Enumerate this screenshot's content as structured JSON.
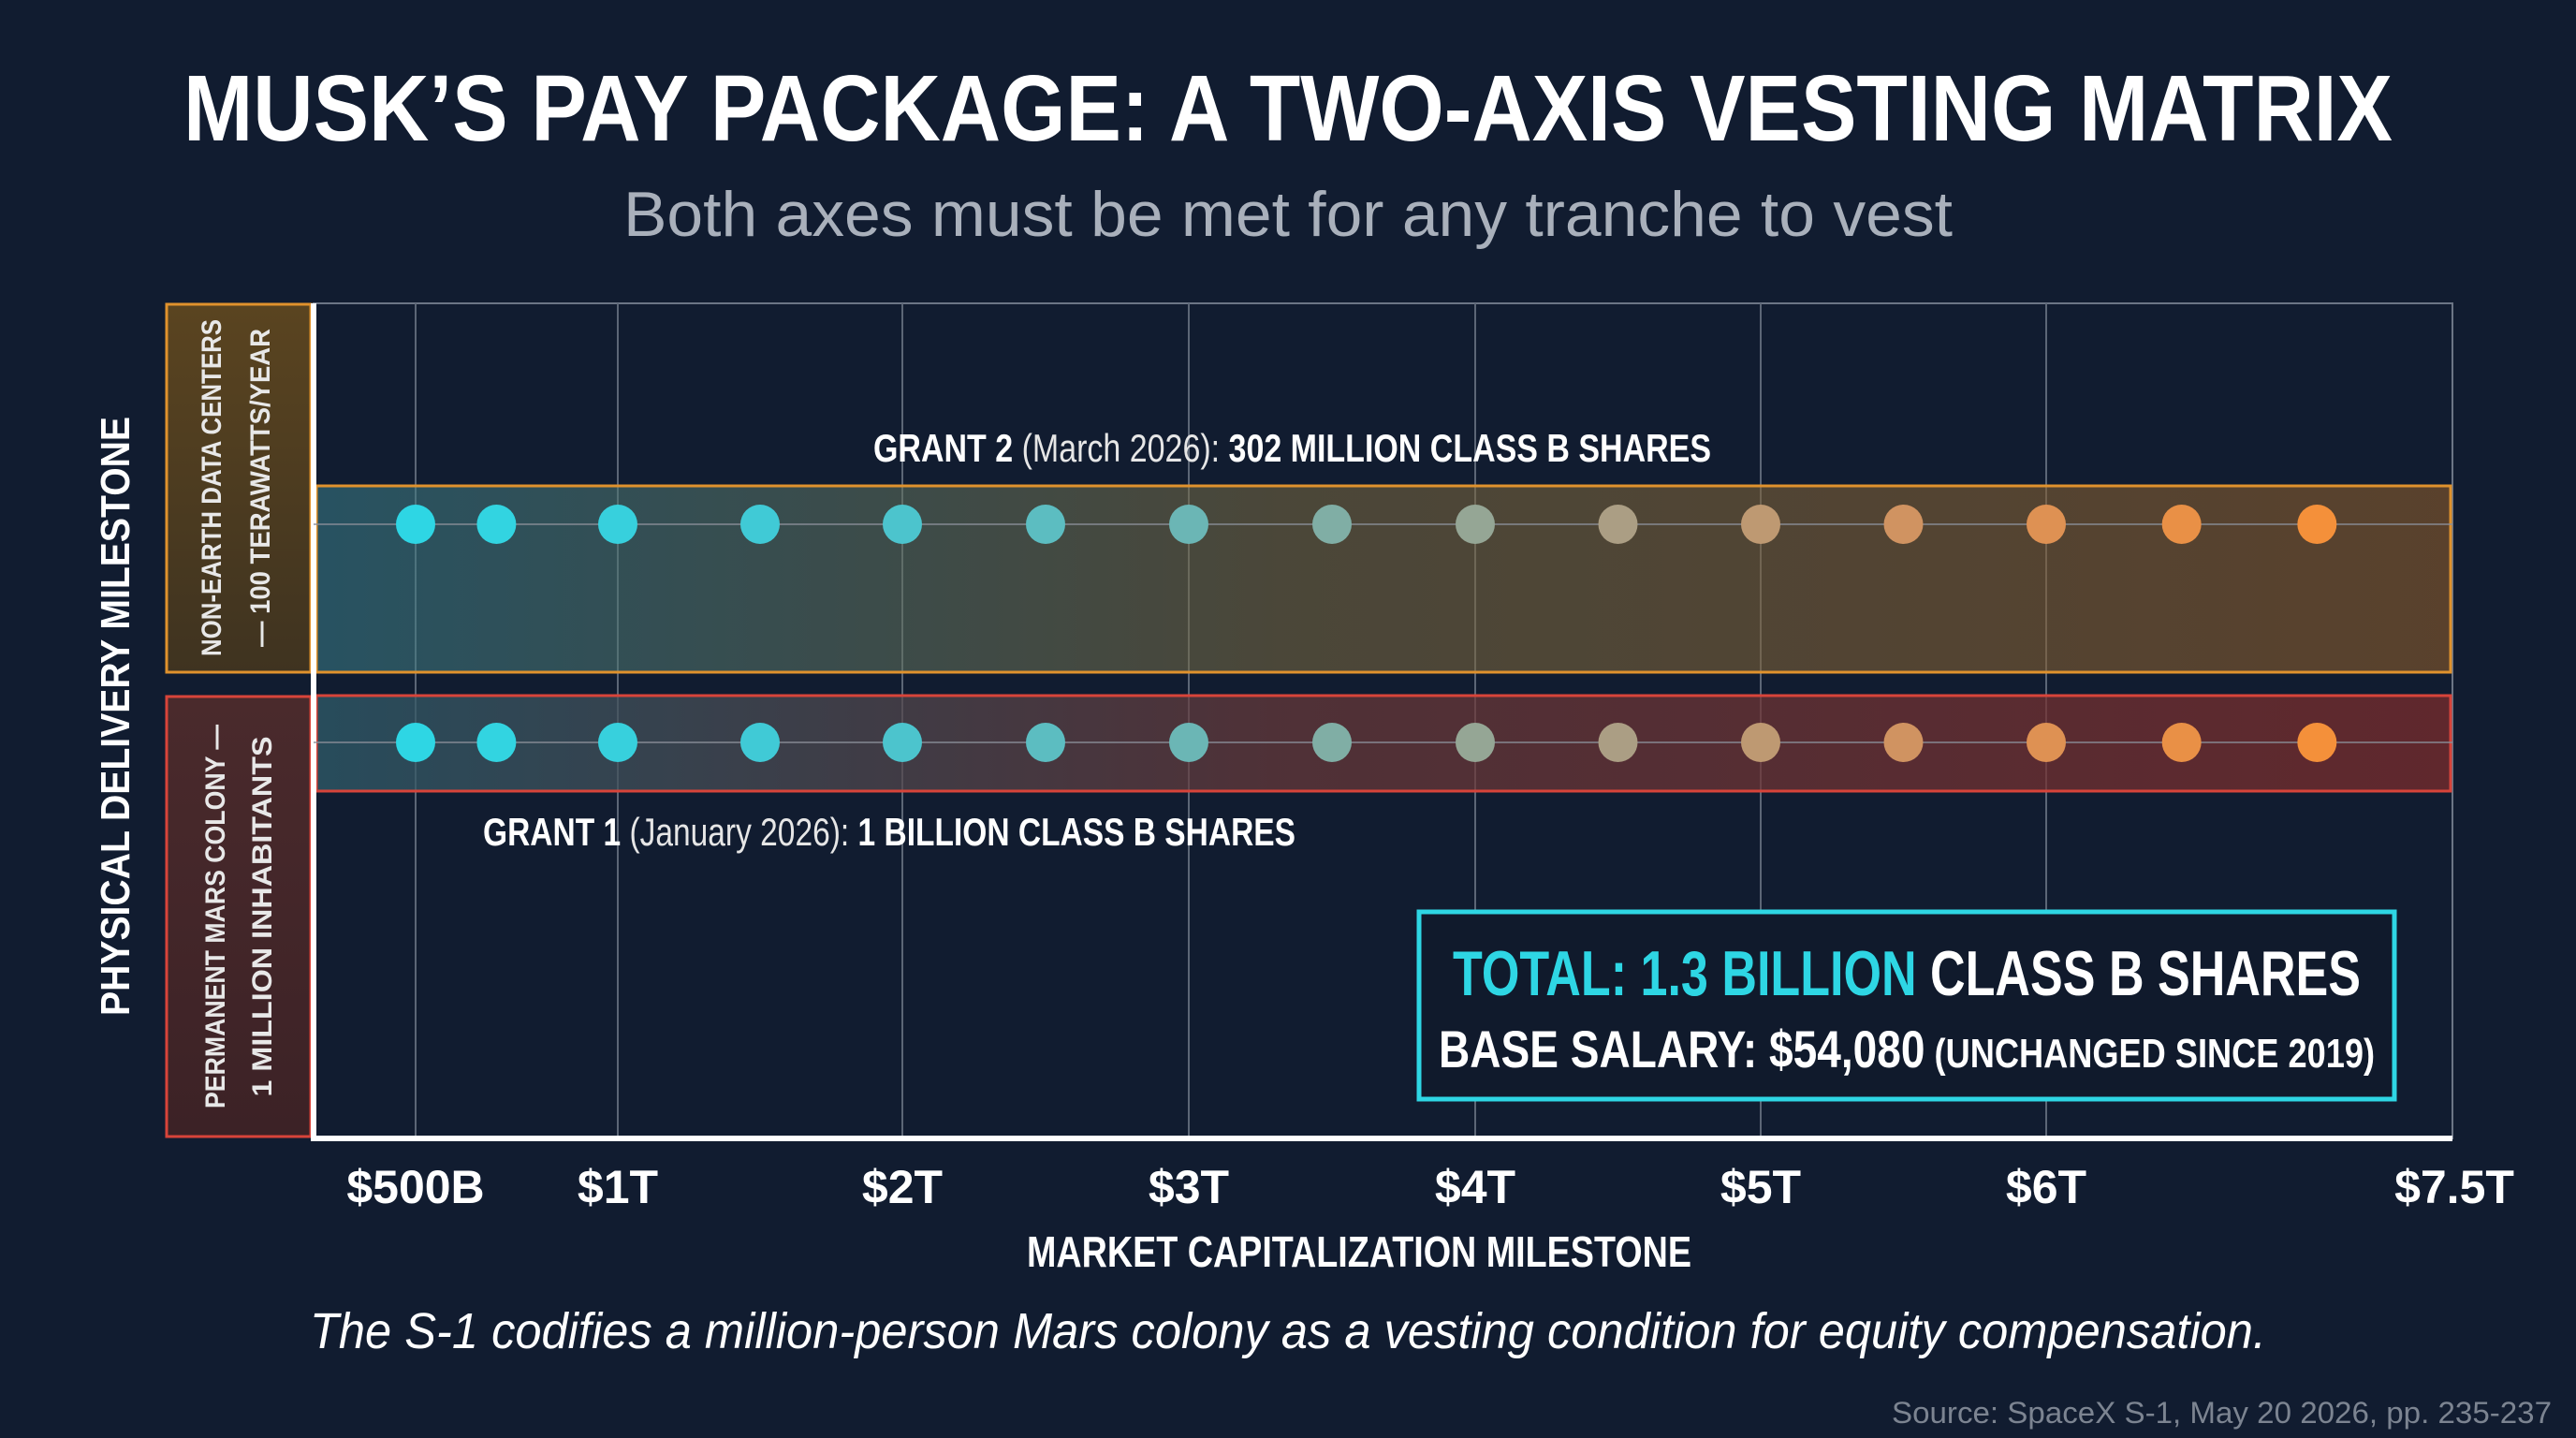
{
  "chart_data": {
    "type": "scatter",
    "title": "MUSK’S PAY PACKAGE: A TWO-AXIS VESTING MATRIX",
    "subtitle": "Both axes must be met for any tranche to vest",
    "xlabel": "MARKET CAPITALIZATION MILESTONE",
    "ylabel": "PHYSICAL DELIVERY MILESTONE",
    "xlim": [
      0.14,
      7.5
    ],
    "x_ticks": [
      {
        "value": 0.5,
        "label": "$500B"
      },
      {
        "value": 1,
        "label": "$1T"
      },
      {
        "value": 2,
        "label": "$2T"
      },
      {
        "value": 3,
        "label": "$3T"
      },
      {
        "value": 4,
        "label": "$4T"
      },
      {
        "value": 5,
        "label": "$5T"
      },
      {
        "value": 6,
        "label": "$6T"
      },
      {
        "value": 7.5,
        "label": "$7.5T"
      }
    ],
    "rows": [
      {
        "label_line1": "NON-EARTH DATA CENTERS",
        "label_line2": "— 100 TERAWATTS/YEAR",
        "band_color": "#e0922d",
        "grant_name": "GRANT 2",
        "grant_date": " (March 2026): ",
        "grant_shares": "302 MILLION CLASS B SHARES"
      },
      {
        "label_line1": "PERMANENT MARS COLONY —",
        "label_line2": "1 MILLION INHABITANTS",
        "band_color": "#d8443a",
        "grant_name": "GRANT 1",
        "grant_date": " (January 2026): ",
        "grant_shares": "1 BILLION CLASS B SHARES"
      }
    ],
    "series": [
      {
        "row": 0,
        "x": [
          0.5,
          0.7,
          1,
          1.5,
          2,
          2.5,
          3,
          3.5,
          4,
          4.5,
          5,
          5.5,
          6,
          6.5,
          7
        ]
      },
      {
        "row": 1,
        "x": [
          0.5,
          0.7,
          1,
          1.5,
          2,
          2.5,
          3,
          3.5,
          4,
          4.5,
          5,
          5.5,
          6,
          6.5,
          7
        ]
      }
    ],
    "point_gradient": [
      "#2ed6e4",
      "#46c7d2",
      "#6eb5b3",
      "#a79f87",
      "#d8915a",
      "#f4903a"
    ],
    "grid": true
  },
  "total_box": {
    "total_label": "TOTAL: 1.3 BILLION",
    "total_suffix": " CLASS B SHARES",
    "salary_label": "BASE SALARY: $54,080",
    "salary_note": " (UNCHANGED SINCE 2019)",
    "border_color": "#2ed6e4"
  },
  "caption": "The S-1 codifies a million-person Mars colony as a vesting condition for equity compensation.",
  "source": "Source: SpaceX S-1, May 20 2026, pp. 235-237",
  "colors": {
    "background": "#111c30",
    "accent_cyan": "#2ed6e4",
    "accent_orange": "#f4903a",
    "accent_red": "#d8443a"
  }
}
